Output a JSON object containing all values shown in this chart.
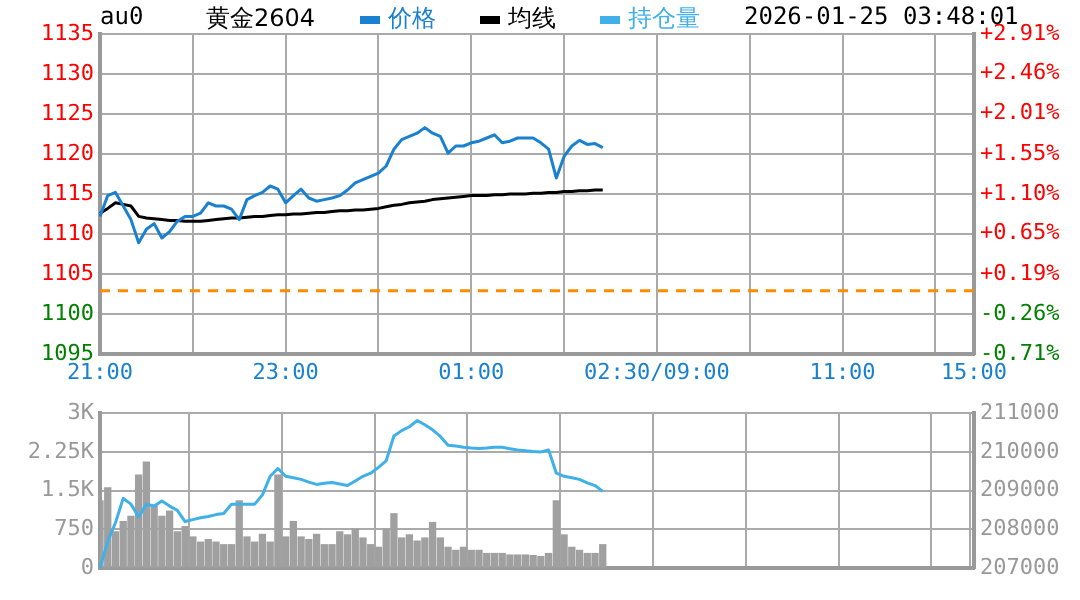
{
  "chart_data": [
    {
      "type": "line",
      "title": "黄金2604",
      "subtitle": "au0",
      "annotations": [
        "2026-01-25 03:48:01"
      ],
      "legend": "top",
      "grid": true,
      "marker": "none",
      "categories": [
        "21:00",
        null,
        null,
        null,
        null,
        null,
        null,
        null,
        null,
        null,
        null,
        null,
        null,
        null,
        null,
        null,
        null,
        null,
        null,
        null,
        null,
        null,
        null,
        null,
        "23:00",
        null,
        null,
        null,
        null,
        null,
        null,
        null,
        null,
        null,
        null,
        null,
        null,
        null,
        null,
        null,
        null,
        null,
        null,
        null,
        null,
        null,
        null,
        null,
        "01:00",
        null,
        null,
        null,
        null,
        null,
        null,
        null,
        null,
        null,
        null,
        null,
        null,
        null,
        null,
        null,
        null,
        null,
        null,
        null,
        null,
        null,
        null,
        null,
        "02:30/09:00",
        null,
        null,
        null,
        null,
        null,
        null,
        null,
        null,
        null,
        null,
        null,
        null,
        null,
        null,
        null,
        null,
        null,
        null,
        null,
        null,
        null,
        null,
        null,
        "11:00",
        null,
        null,
        null,
        null,
        null,
        null,
        null,
        null,
        null,
        null,
        null,
        null,
        null,
        null,
        null,
        null,
        "15:00"
      ],
      "ylim": [
        1095,
        1135
      ],
      "yticks": [
        1095,
        1100,
        1105,
        1110,
        1115,
        1120,
        1125,
        1130,
        1135
      ],
      "y2lim": [
        -0.71,
        2.91
      ],
      "y2ticks": [
        {
          "value": -0.71,
          "label": "-0.71%"
        },
        {
          "value": -0.26,
          "label": "-0.26%"
        },
        {
          "value": 0.19,
          "label": "+0.19%"
        },
        {
          "value": 0.65,
          "label": "+0.65%"
        },
        {
          "value": 1.1,
          "label": "+1.10%"
        },
        {
          "value": 1.55,
          "label": "+1.55%"
        },
        {
          "value": 2.01,
          "label": "+2.01%"
        },
        {
          "value": 2.46,
          "label": "+2.46%"
        },
        {
          "value": 2.91,
          "label": "+2.91%"
        }
      ],
      "ref_lines": [
        {
          "axis": "y",
          "value": 1102.9,
          "color": "#ff8c00",
          "line_style": "dashed"
        }
      ],
      "series": [
        {
          "name": "价格",
          "color": "#1a80d0",
          "values": [
            1112.2,
            1114.8,
            1115.2,
            1113.5,
            1111.8,
            1108.9,
            1110.6,
            1111.3,
            1109.5,
            1110.3,
            1111.6,
            1112.2,
            1112.2,
            1112.6,
            1113.9,
            1113.5,
            1113.5,
            1113.1,
            1111.8,
            1114.3,
            1114.8,
            1115.2,
            1116,
            1115.6,
            1113.9,
            1114.8,
            1115.6,
            1114.5,
            1114.1,
            1114.3,
            1114.5,
            1114.8,
            1115.5,
            1116.4,
            1116.8,
            1117.2,
            1117.6,
            1118.5,
            1120.6,
            1121.8,
            1122.2,
            1122.6,
            1123.3,
            1122.6,
            1122.2,
            1120.1,
            1121,
            1121,
            1121.4,
            1121.6,
            1122,
            1122.4,
            1121.4,
            1121.6,
            1122,
            1122,
            1122,
            1121.4,
            1120.6,
            1117,
            1119.7,
            1121,
            1121.7,
            1121.2,
            1121.3,
            1120.8,
            null,
            null,
            null,
            null,
            null,
            null,
            null,
            null,
            null,
            null,
            null,
            null,
            null,
            null,
            null,
            null,
            null,
            null,
            null,
            null,
            null,
            null,
            null,
            null,
            null,
            null,
            null,
            null,
            null,
            null,
            null,
            null,
            null,
            null,
            null,
            null,
            null,
            null,
            null,
            null,
            null,
            null,
            null,
            null,
            null,
            null,
            null,
            null
          ]
        },
        {
          "name": "均线",
          "color": "#000000",
          "values": [
            1112.6,
            1113.2,
            1113.9,
            1113.7,
            1113.5,
            1112.2,
            1112,
            1111.9,
            1111.8,
            1111.7,
            1111.7,
            1111.6,
            1111.6,
            1111.6,
            1111.7,
            1111.8,
            1111.9,
            1112,
            1112,
            1112.1,
            1112.2,
            1112.2,
            1112.3,
            1112.4,
            1112.4,
            1112.5,
            1112.5,
            1112.6,
            1112.7,
            1112.7,
            1112.8,
            1112.9,
            1112.9,
            1113,
            1113,
            1113.1,
            1113.2,
            1113.4,
            1113.6,
            1113.7,
            1113.9,
            1114,
            1114.1,
            1114.3,
            1114.4,
            1114.5,
            1114.6,
            1114.7,
            1114.8,
            1114.8,
            1114.8,
            1114.9,
            1114.9,
            1115,
            1115,
            1115,
            1115.1,
            1115.1,
            1115.2,
            1115.2,
            1115.3,
            1115.3,
            1115.4,
            1115.4,
            1115.5,
            1115.5,
            null,
            null,
            null,
            null,
            null,
            null,
            null,
            null,
            null,
            null,
            null,
            null,
            null,
            null,
            null,
            null,
            null,
            null,
            null,
            null,
            null,
            null,
            null,
            null,
            null,
            null,
            null,
            null,
            null,
            null,
            null,
            null,
            null,
            null,
            null,
            null,
            null,
            null,
            null,
            null,
            null,
            null,
            null,
            null,
            null,
            null,
            null,
            null
          ]
        }
      ]
    },
    {
      "type": "bar",
      "legend": "top",
      "grid": true,
      "marker": "none",
      "tick_labels": "y",
      "categories": [
        null,
        null,
        null,
        null,
        null,
        null,
        null,
        null,
        null,
        null,
        null,
        null,
        null,
        null,
        null,
        null,
        null,
        null,
        null,
        null,
        null,
        null,
        null,
        null,
        null,
        null,
        null,
        null,
        null,
        null,
        null,
        null,
        null,
        null,
        null,
        null,
        null,
        null,
        null,
        null,
        null,
        null,
        null,
        null,
        null,
        null,
        null,
        null,
        null,
        null,
        null,
        null,
        null,
        null,
        null,
        null,
        null,
        null,
        null,
        null,
        null,
        null,
        null,
        null,
        null,
        null,
        null,
        null,
        null,
        null,
        null,
        null,
        null,
        null,
        null,
        null,
        null,
        null,
        null,
        null,
        null,
        null,
        null,
        null,
        null,
        null,
        null,
        null,
        null,
        null,
        null,
        null,
        null,
        null,
        null,
        null,
        null,
        null,
        null,
        null,
        null,
        null,
        null,
        null,
        null,
        null,
        null,
        null,
        null,
        null,
        null,
        null,
        null,
        null
      ],
      "ylim": [
        0,
        3000
      ],
      "yticks": [
        0,
        {
          "value": 750,
          "label": "750"
        },
        {
          "value": 1500,
          "label": "1.5K"
        },
        {
          "value": 2250,
          "label": "2.25K"
        },
        {
          "value": 3000,
          "label": "3K"
        }
      ],
      "y2lim": [
        207000,
        211000
      ],
      "y2ticks": [
        207000,
        208000,
        209000,
        210000,
        211000
      ],
      "series": [
        {
          "type": "bar",
          "color": "#a0a0a0",
          "values": [
            1300,
            1550,
            700,
            900,
            1000,
            1800,
            2050,
            1200,
            1000,
            1100,
            700,
            800,
            600,
            500,
            550,
            500,
            450,
            450,
            1300,
            600,
            500,
            650,
            500,
            1800,
            600,
            900,
            600,
            550,
            650,
            450,
            450,
            700,
            640,
            750,
            580,
            450,
            400,
            750,
            1050,
            580,
            640,
            520,
            580,
            880,
            580,
            400,
            340,
            400,
            340,
            340,
            280,
            280,
            280,
            250,
            250,
            250,
            240,
            220,
            280,
            1300,
            640,
            400,
            340,
            280,
            280,
            450,
            null,
            null,
            null,
            null,
            null,
            null,
            null,
            null,
            null,
            null,
            null,
            null,
            null,
            null,
            null,
            null,
            null,
            null,
            null,
            null,
            null,
            null,
            null,
            null,
            null,
            null,
            null,
            null,
            null,
            null,
            null,
            null,
            null,
            null,
            null,
            null,
            null,
            null,
            null,
            null,
            null,
            null,
            null,
            null,
            null,
            null,
            null,
            null
          ]
        },
        {
          "type": "line",
          "name": "持仓量",
          "color": "#3fb0e8",
          "axis": "y2",
          "values": [
            207000,
            207690,
            208170,
            208800,
            208650,
            208320,
            208650,
            208600,
            208730,
            208600,
            208490,
            208200,
            208250,
            208300,
            208330,
            208380,
            208410,
            208650,
            208650,
            208650,
            208650,
            208890,
            209370,
            209570,
            209370,
            209330,
            209290,
            209220,
            209160,
            209190,
            209210,
            209170,
            209130,
            209250,
            209370,
            209450,
            209600,
            209770,
            210410,
            210550,
            210650,
            210810,
            210700,
            210570,
            210400,
            210170,
            210150,
            210120,
            210100,
            210090,
            210100,
            210120,
            210120,
            210080,
            210050,
            210030,
            210010,
            210000,
            210050,
            209450,
            209370,
            209330,
            209290,
            209200,
            209130,
            208980,
            null,
            null,
            null,
            null,
            null,
            null,
            null,
            null,
            null,
            null,
            null,
            null,
            null,
            null,
            null,
            null,
            null,
            null,
            null,
            null,
            null,
            null,
            null,
            null,
            null,
            null,
            null,
            null,
            null,
            null,
            null,
            null,
            null,
            null,
            null,
            null,
            null,
            null,
            null,
            null,
            null,
            null,
            null,
            null,
            null,
            null,
            null,
            null
          ]
        }
      ]
    }
  ]
}
